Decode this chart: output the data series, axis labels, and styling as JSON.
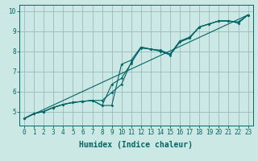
{
  "title": "",
  "xlabel": "Humidex (Indice chaleur)",
  "ylabel": "",
  "bg_color": "#cce8e4",
  "line_color": "#006666",
  "grid_color": "#99bbbb",
  "xlim": [
    -0.5,
    23.5
  ],
  "ylim": [
    4.3,
    10.3
  ],
  "xticks": [
    0,
    1,
    2,
    3,
    4,
    5,
    6,
    7,
    8,
    9,
    10,
    11,
    12,
    13,
    14,
    15,
    16,
    17,
    18,
    19,
    20,
    21,
    22,
    23
  ],
  "yticks": [
    5,
    6,
    7,
    8,
    9,
    10
  ],
  "line1_x": [
    0,
    1,
    2,
    3,
    4,
    5,
    6,
    7,
    8,
    9,
    10,
    11,
    12,
    13,
    14,
    15,
    16,
    17,
    18,
    19,
    20,
    21,
    22,
    23
  ],
  "line1_y": [
    4.65,
    4.9,
    5.0,
    5.2,
    5.35,
    5.45,
    5.5,
    5.55,
    5.3,
    5.3,
    7.35,
    7.55,
    8.2,
    8.1,
    8.05,
    7.85,
    8.5,
    8.7,
    9.2,
    9.35,
    9.5,
    9.5,
    9.45,
    9.8
  ],
  "line2_x": [
    0,
    1,
    2,
    3,
    4,
    5,
    6,
    7,
    8,
    9,
    10,
    11,
    12,
    13,
    14,
    15,
    16,
    17,
    18,
    19,
    20,
    21,
    22,
    23
  ],
  "line2_y": [
    4.65,
    4.9,
    5.0,
    5.2,
    5.35,
    5.45,
    5.5,
    5.55,
    5.3,
    6.35,
    6.65,
    7.4,
    8.2,
    8.1,
    8.0,
    7.8,
    8.45,
    8.65,
    9.2,
    9.35,
    9.5,
    9.5,
    9.4,
    9.8
  ],
  "line3_x": [
    0,
    1,
    2,
    3,
    4,
    5,
    6,
    7,
    8,
    9,
    10,
    11,
    12,
    13,
    14,
    15,
    16,
    17,
    18,
    19,
    20,
    21,
    22,
    23
  ],
  "line3_y": [
    4.65,
    4.9,
    5.0,
    5.2,
    5.35,
    5.45,
    5.5,
    5.55,
    5.55,
    5.95,
    6.35,
    7.45,
    8.15,
    8.1,
    8.0,
    7.85,
    8.5,
    8.65,
    9.2,
    9.35,
    9.5,
    9.5,
    9.4,
    9.8
  ],
  "line4_x": [
    0,
    23
  ],
  "line4_y": [
    4.65,
    9.8
  ],
  "marker": "D",
  "markersize": 1.8,
  "linewidth": 0.8,
  "xlabel_fontsize": 7,
  "tick_fontsize": 5.5
}
